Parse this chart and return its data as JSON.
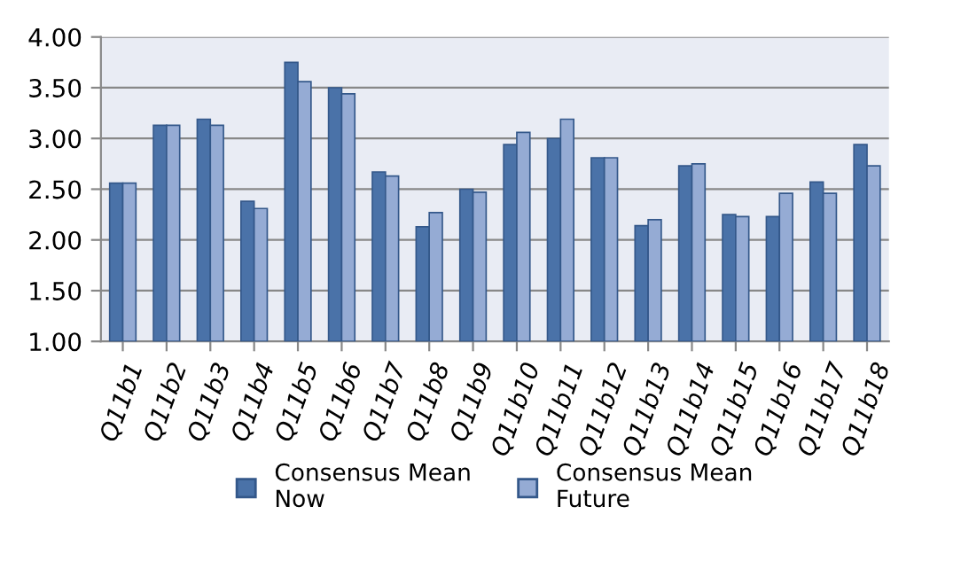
{
  "chart_data": {
    "type": "bar",
    "categories": [
      "Q11b1",
      "Q11b2",
      "Q11b3",
      "Q11b4",
      "Q11b5",
      "Q11b6",
      "Q11b7",
      "Q11b8",
      "Q11b9",
      "Q11b10",
      "Q11b11",
      "Q11b12",
      "Q11b13",
      "Q11b14",
      "Q11b15",
      "Q11b16",
      "Q11b17",
      "Q11b18"
    ],
    "series": [
      {
        "name": "Consensus Mean\nNow",
        "color": "#4a72a8",
        "values": [
          2.56,
          3.13,
          3.19,
          2.38,
          3.75,
          3.5,
          2.67,
          2.13,
          2.5,
          2.94,
          3.0,
          2.81,
          2.14,
          2.73,
          2.25,
          2.23,
          2.57,
          2.94
        ]
      },
      {
        "name": "Consensus Mean\nFuture",
        "color": "#95abd4",
        "values": [
          2.56,
          3.13,
          3.13,
          2.31,
          3.56,
          3.44,
          2.63,
          2.27,
          2.47,
          3.06,
          3.19,
          2.81,
          2.2,
          2.75,
          2.23,
          2.46,
          2.46,
          2.73
        ]
      }
    ],
    "ylim": [
      1.0,
      4.0
    ],
    "yticks": [
      {
        "value": 1,
        "label": "1.00"
      },
      {
        "value": 1.5,
        "label": "1.50"
      },
      {
        "value": 2,
        "label": "2.00"
      },
      {
        "value": 2.5,
        "label": "2.50"
      },
      {
        "value": 3,
        "label": "3.00"
      },
      {
        "value": 3.5,
        "label": "3.50"
      },
      {
        "value": 4,
        "label": "4.00"
      }
    ],
    "grid": "y",
    "legend": "bottom"
  }
}
